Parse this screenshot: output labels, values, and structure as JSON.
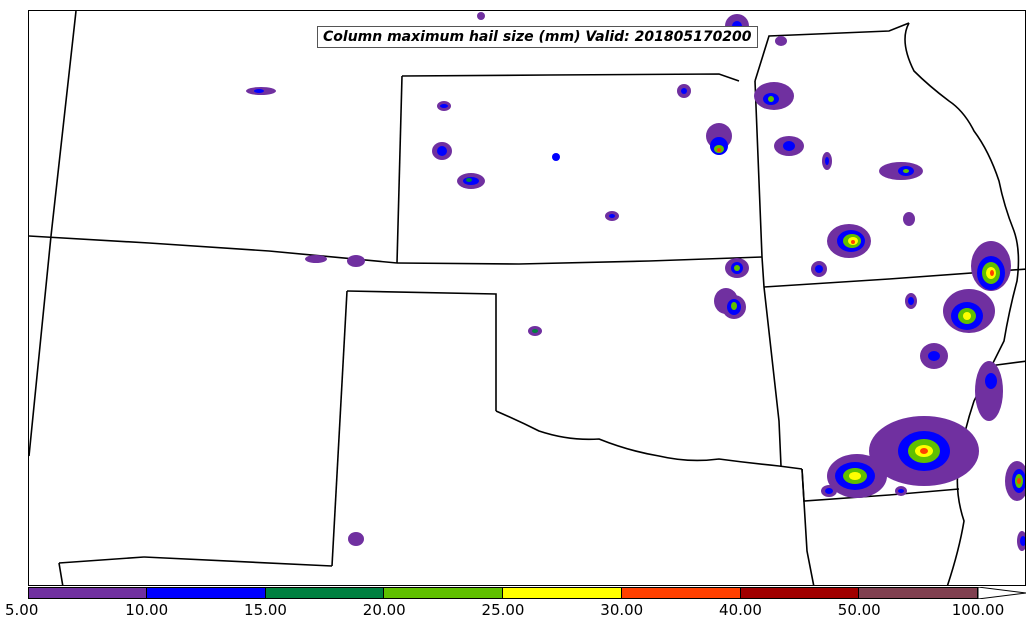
{
  "title": "Column maximum hail size (mm) Valid: 201805170200",
  "colorbar": {
    "levels": [
      "5.00",
      "10.00",
      "15.00",
      "20.00",
      "25.00",
      "30.00",
      "40.00",
      "50.00",
      "100.00"
    ],
    "colors": [
      "#7030a0",
      "#0000ff",
      "#008040",
      "#60c000",
      "#ffff00",
      "#ff4000",
      "#a00000",
      "#804050"
    ],
    "extend": "max"
  },
  "map": {
    "region": "Central United States",
    "features": [
      "state-boundaries",
      "mississippi-river",
      "hail-contours"
    ]
  }
}
